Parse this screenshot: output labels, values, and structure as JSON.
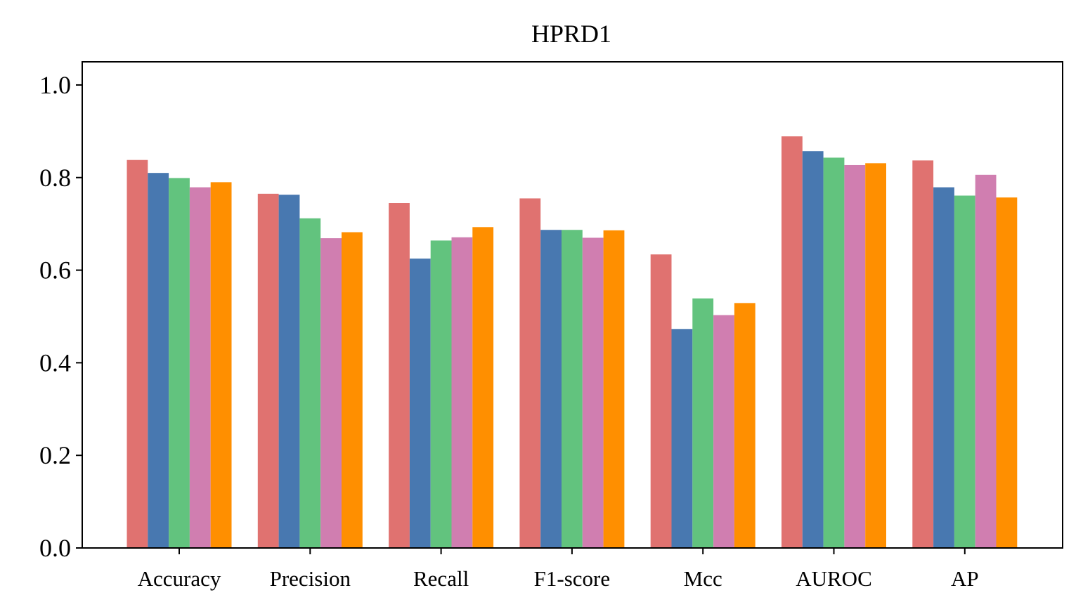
{
  "chart_data": {
    "type": "bar",
    "title": "HPRD1",
    "xlabel": "",
    "ylabel": "",
    "categories": [
      "Accuracy",
      "Precision",
      "Recall",
      "F1-score",
      "Mcc",
      "AUROC",
      "AP"
    ],
    "series": [
      {
        "color": "#E07270",
        "values": [
          0.838,
          0.765,
          0.745,
          0.755,
          0.634,
          0.889,
          0.837
        ]
      },
      {
        "color": "#4878B0",
        "values": [
          0.81,
          0.763,
          0.625,
          0.687,
          0.473,
          0.857,
          0.779
        ]
      },
      {
        "color": "#62C37E",
        "values": [
          0.799,
          0.712,
          0.664,
          0.687,
          0.539,
          0.843,
          0.761
        ]
      },
      {
        "color": "#D07EB0",
        "values": [
          0.779,
          0.669,
          0.671,
          0.67,
          0.503,
          0.827,
          0.806
        ]
      },
      {
        "color": "#FF8F00",
        "values": [
          0.79,
          0.682,
          0.693,
          0.686,
          0.529,
          0.831,
          0.757
        ]
      }
    ],
    "ylim": [
      0.0,
      1.05
    ],
    "yticks": [
      0.0,
      0.2,
      0.4,
      0.6,
      0.8,
      1.0
    ],
    "ytick_labels": [
      "0.0",
      "0.2",
      "0.4",
      "0.6",
      "0.8",
      "1.0"
    ],
    "grid": false,
    "legend": "none"
  }
}
